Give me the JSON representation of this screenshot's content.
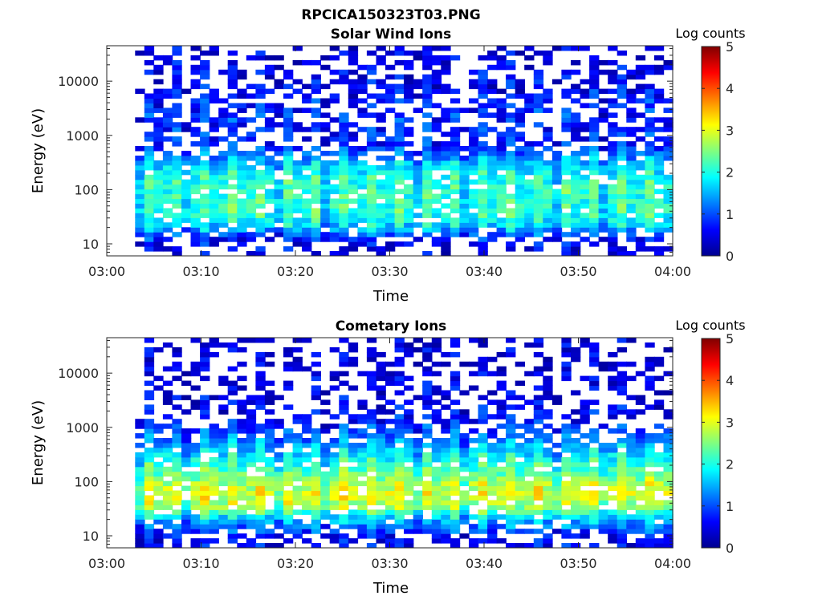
{
  "figure_title": "RPCICA150323T03.PNG",
  "chart_data": [
    {
      "type": "heatmap",
      "title": "Solar Wind Ions",
      "xlabel": "Time",
      "ylabel": "Energy (eV)",
      "x_ticks": [
        "03:00",
        "03:10",
        "03:20",
        "03:30",
        "03:40",
        "03:50",
        "04:00"
      ],
      "x_range_minutes": [
        0,
        60
      ],
      "y_scale": "log",
      "y_ticks": [
        "10",
        "100",
        "1000",
        "10000"
      ],
      "y_range": [
        6,
        45000
      ],
      "colorbar": {
        "label": "Log counts",
        "range": [
          0,
          5
        ],
        "ticks": [
          "0",
          "1",
          "2",
          "3",
          "4",
          "5"
        ],
        "colormap": "jet"
      },
      "profile_log_counts_by_energy": [
        {
          "energy": 8,
          "value": 0.3
        },
        {
          "energy": 12,
          "value": 0.6
        },
        {
          "energy": 20,
          "value": 1.5
        },
        {
          "energy": 35,
          "value": 2.0
        },
        {
          "energy": 60,
          "value": 2.0
        },
        {
          "energy": 100,
          "value": 2.0
        },
        {
          "energy": 160,
          "value": 1.9
        },
        {
          "energy": 250,
          "value": 1.7
        },
        {
          "energy": 400,
          "value": 1.2
        },
        {
          "energy": 700,
          "value": 0.6
        },
        {
          "energy": 1500,
          "value": 0.7
        },
        {
          "energy": 4000,
          "value": 0.6
        },
        {
          "energy": 10000,
          "value": 0.4
        },
        {
          "energy": 30000,
          "value": 0.3
        }
      ],
      "data_start_minute": 3
    },
    {
      "type": "heatmap",
      "title": "Cometary Ions",
      "xlabel": "Time",
      "ylabel": "Energy (eV)",
      "x_ticks": [
        "03:00",
        "03:10",
        "03:20",
        "03:30",
        "03:40",
        "03:50",
        "04:00"
      ],
      "x_range_minutes": [
        0,
        60
      ],
      "y_scale": "log",
      "y_ticks": [
        "10",
        "100",
        "1000",
        "10000"
      ],
      "y_range": [
        6,
        45000
      ],
      "colorbar": {
        "label": "Log counts",
        "range": [
          0,
          5
        ],
        "ticks": [
          "0",
          "1",
          "2",
          "3",
          "4",
          "5"
        ],
        "colormap": "jet"
      },
      "profile_log_counts_by_energy": [
        {
          "energy": 8,
          "value": 0.4
        },
        {
          "energy": 12,
          "value": 0.8
        },
        {
          "energy": 20,
          "value": 1.5
        },
        {
          "energy": 35,
          "value": 2.6
        },
        {
          "energy": 60,
          "value": 2.9
        },
        {
          "energy": 100,
          "value": 2.6
        },
        {
          "energy": 160,
          "value": 2.2
        },
        {
          "energy": 250,
          "value": 1.9
        },
        {
          "energy": 400,
          "value": 1.5
        },
        {
          "energy": 700,
          "value": 1.0
        },
        {
          "energy": 1500,
          "value": 0.5
        },
        {
          "energy": 4000,
          "value": 0.3
        },
        {
          "energy": 10000,
          "value": 0.2
        }
      ],
      "data_start_minute": 3
    }
  ]
}
